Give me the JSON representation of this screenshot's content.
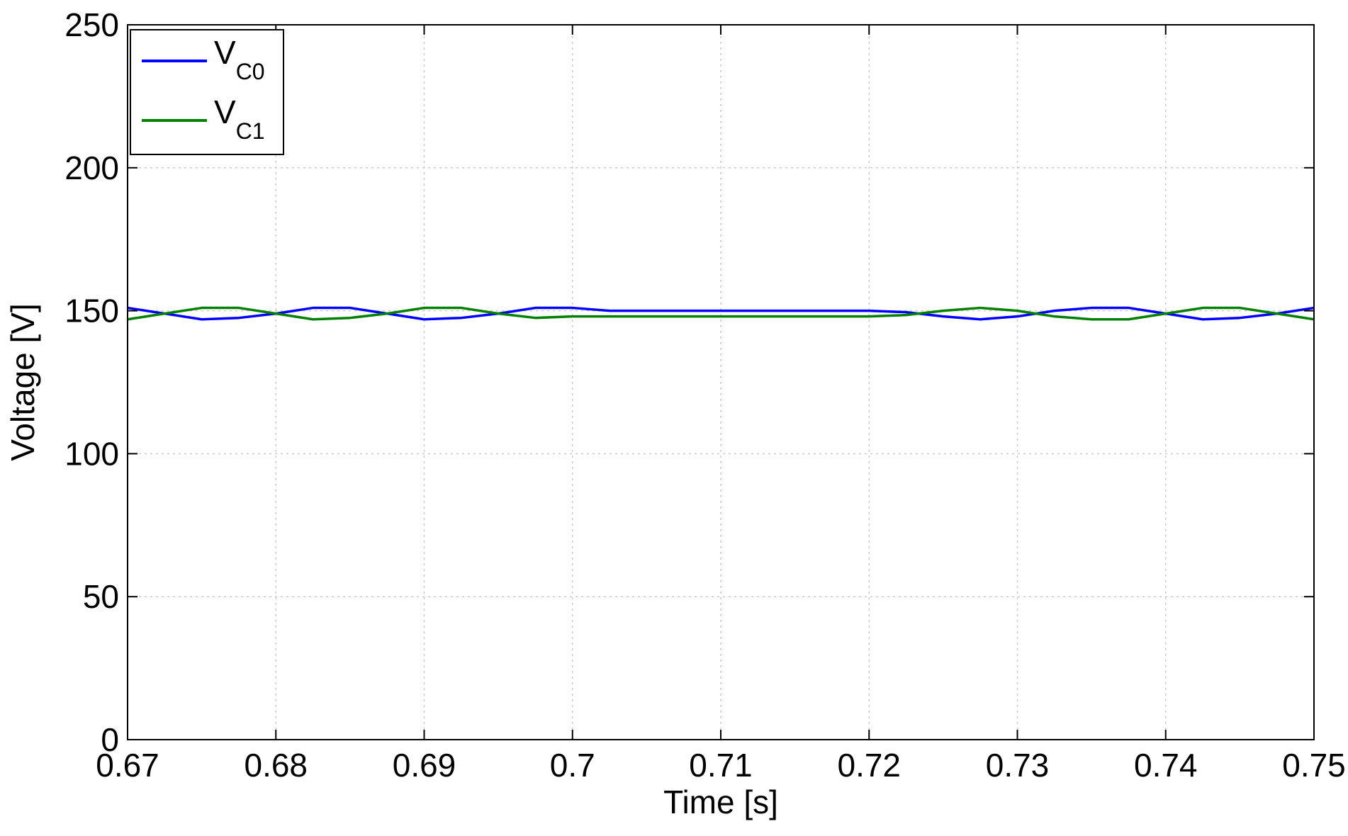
{
  "chart_data": {
    "type": "line",
    "xlabel": "Time [s]",
    "ylabel": "Voltage [V]",
    "xlim": [
      0.67,
      0.75
    ],
    "ylim": [
      0,
      250
    ],
    "xticks": [
      0.67,
      0.68,
      0.69,
      0.7,
      0.71,
      0.72,
      0.73,
      0.74,
      0.75
    ],
    "xtick_labels": [
      "0.67",
      "0.68",
      "0.69",
      "0.7",
      "0.71",
      "0.72",
      "0.73",
      "0.74",
      "0.75"
    ],
    "yticks": [
      0,
      50,
      100,
      150,
      200,
      250
    ],
    "ytick_labels": [
      "0",
      "50",
      "100",
      "150",
      "200",
      "250"
    ],
    "grid": true,
    "legend_position": "top-left",
    "series": [
      {
        "name": "VC0",
        "legend_main": "V",
        "legend_sub": "C0",
        "color": "#0000ff",
        "x": [
          0.67,
          0.6725,
          0.675,
          0.6775,
          0.68,
          0.6825,
          0.685,
          0.6875,
          0.69,
          0.6925,
          0.695,
          0.6975,
          0.7,
          0.7025,
          0.705,
          0.7075,
          0.71,
          0.7125,
          0.715,
          0.7175,
          0.72,
          0.7225,
          0.725,
          0.7275,
          0.73,
          0.7325,
          0.735,
          0.7375,
          0.74,
          0.7425,
          0.745,
          0.7475,
          0.75
        ],
        "y": [
          151,
          149,
          147,
          147.5,
          149,
          151,
          151,
          149,
          147,
          147.5,
          149,
          151,
          151,
          150,
          150,
          150,
          150,
          150,
          150,
          150,
          150,
          149.5,
          148,
          147,
          148,
          150,
          151,
          151,
          149,
          147,
          147.5,
          149,
          151
        ]
      },
      {
        "name": "VC1",
        "legend_main": "V",
        "legend_sub": "C1",
        "color": "#008000",
        "x": [
          0.67,
          0.6725,
          0.675,
          0.6775,
          0.68,
          0.6825,
          0.685,
          0.6875,
          0.69,
          0.6925,
          0.695,
          0.6975,
          0.7,
          0.7025,
          0.705,
          0.7075,
          0.71,
          0.7125,
          0.715,
          0.7175,
          0.72,
          0.7225,
          0.725,
          0.7275,
          0.73,
          0.7325,
          0.735,
          0.7375,
          0.74,
          0.7425,
          0.745,
          0.7475,
          0.75
        ],
        "y": [
          147,
          149,
          151,
          151,
          149,
          147,
          147.5,
          149,
          151,
          151,
          149,
          147.5,
          148,
          148,
          148,
          148,
          148,
          148,
          148,
          148,
          148,
          148.5,
          150,
          151,
          150,
          148,
          147,
          147,
          149,
          151,
          151,
          149,
          147
        ]
      }
    ]
  }
}
